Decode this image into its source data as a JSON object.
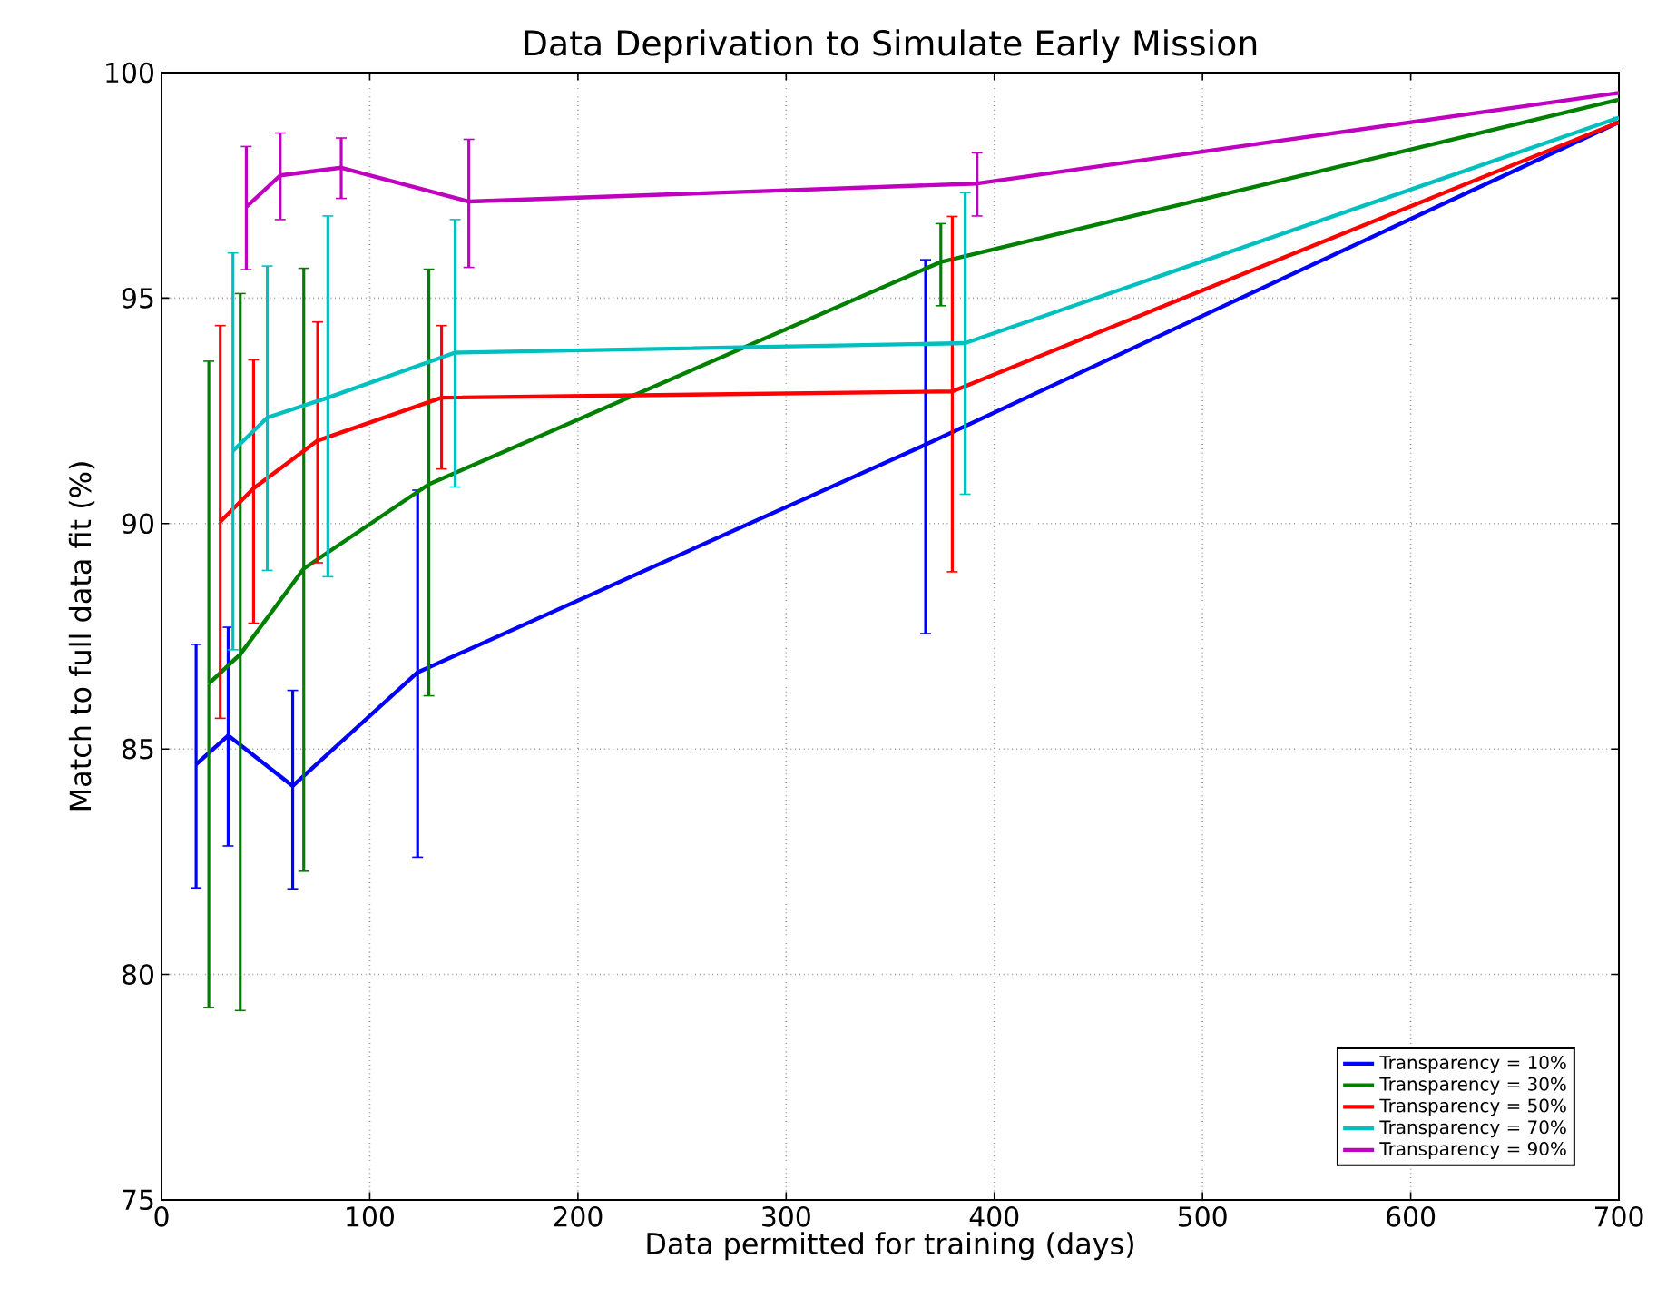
{
  "chart_data": {
    "type": "line",
    "title": "Data Deprivation to Simulate Early Mission",
    "xlabel": "Data permitted for training (days)",
    "ylabel": "Match to full data fit (%)",
    "xlim": [
      0,
      700
    ],
    "ylim": [
      75,
      100
    ],
    "xticks": [
      0,
      100,
      200,
      300,
      400,
      500,
      600,
      700
    ],
    "yticks": [
      75,
      80,
      85,
      90,
      95,
      100
    ],
    "grid": true,
    "legend": "bottom right",
    "marker": "none",
    "line_style": "solid",
    "series": [
      {
        "name": "Transparency = 10%",
        "color": "#0000ff",
        "x": [
          16.6,
          32,
          63,
          123,
          367,
          700
        ],
        "values": [
          84.66,
          85.3,
          84.18,
          86.7,
          91.75,
          98.9
        ],
        "errors": [
          [
            81.92,
            87.32
          ],
          [
            82.85,
            87.7
          ],
          [
            81.9,
            86.3
          ],
          [
            82.6,
            90.74
          ],
          [
            87.56,
            95.85
          ],
          null
        ]
      },
      {
        "name": "Transparency = 30%",
        "color": "#008000",
        "x": [
          22.7,
          37.8,
          68.3,
          128.4,
          374.3,
          700
        ],
        "values": [
          86.45,
          87.1,
          89.0,
          90.87,
          95.8,
          99.4
        ],
        "errors": [
          [
            79.27,
            93.6
          ],
          [
            79.2,
            95.1
          ],
          [
            82.29,
            95.66
          ],
          [
            86.18,
            95.64
          ],
          [
            94.83,
            96.65
          ],
          null
        ]
      },
      {
        "name": "Transparency = 50%",
        "color": "#ff0000",
        "x": [
          28.2,
          44.2,
          75,
          134.5,
          379.8,
          700
        ],
        "values": [
          90.04,
          90.78,
          91.84,
          92.79,
          92.93,
          98.9
        ],
        "errors": [
          [
            85.68,
            94.39
          ],
          [
            87.79,
            93.63
          ],
          [
            89.13,
            94.47
          ],
          [
            91.21,
            94.39
          ],
          [
            88.93,
            96.81
          ],
          null
        ]
      },
      {
        "name": "Transparency = 70%",
        "color": "#00bfbf",
        "x": [
          34.3,
          50.8,
          79.9,
          141,
          386,
          700
        ],
        "values": [
          91.61,
          92.35,
          92.79,
          93.79,
          94.0,
          99.0
        ],
        "errors": [
          [
            87.2,
            96.0
          ],
          [
            88.96,
            95.71
          ],
          [
            88.82,
            96.82
          ],
          [
            90.81,
            96.74
          ],
          [
            90.65,
            97.34
          ],
          null
        ]
      },
      {
        "name": "Transparency = 90%",
        "color": "#bf00bf",
        "x": [
          40.7,
          57,
          86.3,
          147.6,
          391.7,
          700
        ],
        "values": [
          97.02,
          97.72,
          97.89,
          97.14,
          97.54,
          99.55
        ],
        "errors": [
          [
            95.63,
            98.36
          ],
          [
            96.74,
            98.66
          ],
          [
            97.21,
            98.55
          ],
          [
            95.68,
            98.52
          ],
          [
            96.82,
            98.22
          ],
          null
        ]
      }
    ]
  }
}
